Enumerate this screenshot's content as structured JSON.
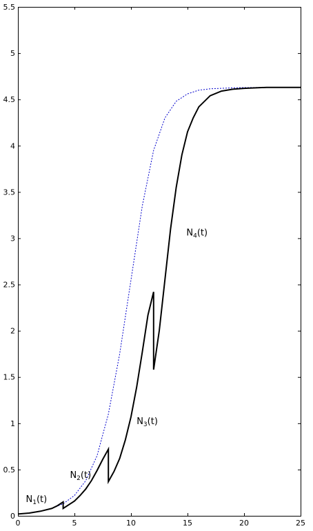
{
  "chart_data": {
    "type": "line",
    "title": "",
    "xlabel": "",
    "ylabel": "",
    "xlim": [
      0,
      25
    ],
    "ylim": [
      0,
      5.5
    ],
    "xticks": [
      0,
      5,
      10,
      15,
      20,
      25
    ],
    "yticks": [
      0,
      0.5,
      1,
      1.5,
      2,
      2.5,
      3,
      3.5,
      4,
      4.5,
      5,
      5.5
    ],
    "xtick_labels": [
      "0",
      "5",
      "10",
      "15",
      "20",
      "25"
    ],
    "ytick_labels": [
      "0",
      "0.5",
      "1",
      "1.5",
      "2",
      "2.5",
      "3",
      "3.5",
      "4",
      "4.5",
      "5",
      "5.5"
    ],
    "grid": false,
    "box": true,
    "series": [
      {
        "style": "dotted",
        "color": "#0000cc",
        "x": [
          0,
          1,
          2,
          3,
          4,
          5,
          6,
          7,
          8,
          9,
          10,
          11,
          12,
          13,
          14,
          15,
          16,
          17,
          18,
          19,
          20,
          22,
          25
        ],
        "y": [
          0.02,
          0.03,
          0.05,
          0.08,
          0.13,
          0.22,
          0.38,
          0.65,
          1.1,
          1.75,
          2.55,
          3.35,
          3.95,
          4.3,
          4.48,
          4.56,
          4.6,
          4.615,
          4.62,
          4.625,
          4.628,
          4.63,
          4.63
        ]
      },
      {
        "style": "solid",
        "color": "#000000",
        "x": [
          0,
          1,
          2,
          3,
          3.5,
          4,
          4,
          4.5,
          5,
          5.5,
          6,
          6.5,
          7,
          7.5,
          8,
          8,
          8.5,
          9,
          9.5,
          10,
          10.5,
          11,
          11.5,
          12,
          12,
          12.5,
          13,
          13.5,
          14,
          14.5,
          15,
          15.5,
          16,
          17,
          18,
          19,
          20,
          22,
          25
        ],
        "y": [
          0.02,
          0.03,
          0.05,
          0.08,
          0.11,
          0.15,
          0.08,
          0.12,
          0.16,
          0.22,
          0.29,
          0.38,
          0.49,
          0.61,
          0.72,
          0.37,
          0.48,
          0.62,
          0.82,
          1.07,
          1.39,
          1.77,
          2.17,
          2.42,
          1.58,
          2.0,
          2.55,
          3.1,
          3.55,
          3.9,
          4.15,
          4.3,
          4.42,
          4.54,
          4.59,
          4.61,
          4.62,
          4.63,
          4.63
        ]
      }
    ],
    "annotations": [
      {
        "base": "N",
        "sub": "1",
        "suffix": "(t)",
        "x": 0.7,
        "y": 0.15
      },
      {
        "base": "N",
        "sub": "2",
        "suffix": "(t)",
        "x": 4.6,
        "y": 0.41
      },
      {
        "base": "N",
        "sub": "3",
        "suffix": "(t)",
        "x": 10.5,
        "y": 0.99
      },
      {
        "base": "N",
        "sub": "4",
        "suffix": "(t)",
        "x": 14.9,
        "y": 3.03
      }
    ]
  }
}
